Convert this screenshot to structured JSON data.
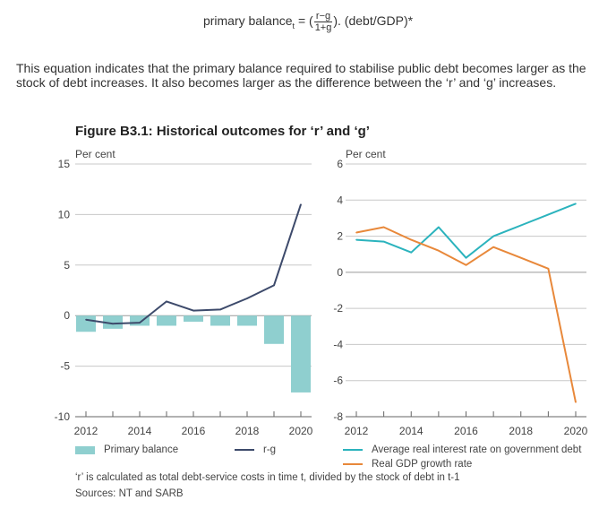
{
  "equation": {
    "lhs": "primary balance",
    "subscript": "t",
    "eq_open": " = (",
    "numerator": "r−g",
    "denominator": "1+g",
    "rhs": "). (debt/GDP)*"
  },
  "intro_text": "This equation indicates that the primary balance required to stabilise public debt becomes larger as the stock of debt increases. It also becomes larger as the difference between the ‘r’ and ‘g’ increases.",
  "figure_title": "Figure B3.1: Historical outcomes for ‘r’ and ‘g’",
  "chart_data": [
    {
      "type": "bar",
      "ylabel": "Per cent",
      "ylim": [
        -10,
        15
      ],
      "yticks": [
        "15",
        "10",
        "5",
        "0",
        "-5",
        "-10"
      ],
      "xlim": [
        2012,
        2020
      ],
      "xticks": [
        "2012",
        "2014",
        "2016",
        "2018",
        "2020"
      ],
      "grid": true,
      "x": [
        2012,
        2013,
        2014,
        2015,
        2016,
        2017,
        2018,
        2019,
        2020
      ],
      "series": [
        {
          "name": "Primary balance",
          "kind": "bar",
          "color": "#8fcfcf",
          "values": [
            -1.6,
            -1.3,
            -1.0,
            -1.0,
            -0.6,
            -1.0,
            -1.0,
            -2.8,
            -7.6
          ]
        },
        {
          "name": "r-g",
          "kind": "line",
          "color": "#3d4a6b",
          "values": [
            -0.4,
            -0.8,
            -0.7,
            1.4,
            0.5,
            0.6,
            1.7,
            3.0,
            11.0
          ]
        }
      ],
      "legend_placement": "bottom"
    },
    {
      "type": "line",
      "ylabel": "Per cent",
      "ylim": [
        -8,
        6
      ],
      "yticks": [
        "6",
        "4",
        "2",
        "0",
        "-2",
        "-4",
        "-6",
        "-8"
      ],
      "xlim": [
        2012,
        2020
      ],
      "xticks": [
        "2012",
        "2014",
        "2016",
        "2018",
        "2020"
      ],
      "grid": true,
      "x": [
        2012,
        2013,
        2014,
        2015,
        2016,
        2017,
        2018,
        2019,
        2020
      ],
      "series": [
        {
          "name": "Average real interest rate on government debt",
          "color": "#2bb3bd",
          "values": [
            1.8,
            1.7,
            1.1,
            2.5,
            0.8,
            2.0,
            2.6,
            3.2,
            3.8
          ]
        },
        {
          "name": "Real GDP growth rate",
          "color": "#e8883a",
          "values": [
            2.2,
            2.5,
            1.8,
            1.2,
            0.4,
            1.4,
            0.8,
            0.2,
            -7.2
          ]
        }
      ],
      "legend_placement": "bottom"
    }
  ],
  "footnote": "‘r’ is calculated as total debt-service costs in time t, divided by the stock of debt in t-1",
  "sources": "Sources: NT and SARB"
}
